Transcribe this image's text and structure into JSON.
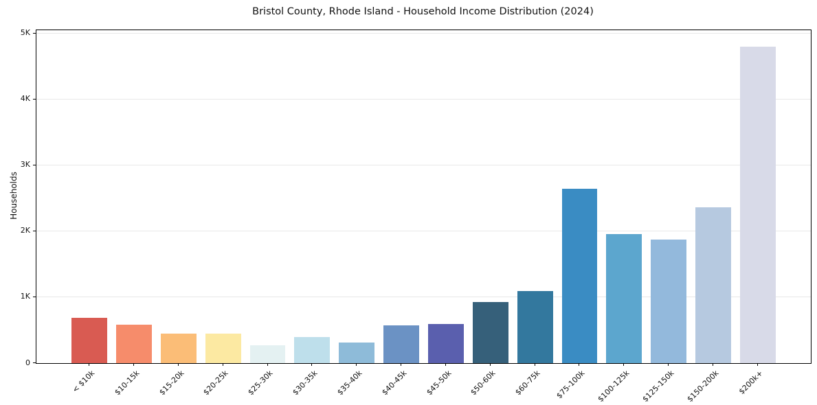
{
  "chart_data": {
    "type": "bar",
    "title": "Bristol County, Rhode Island - Household Income Distribution (2024)",
    "xlabel": "",
    "ylabel": "Households",
    "categories": [
      "< $10k",
      "$10-15k",
      "$15-20k",
      "$20-25k",
      "$25-30k",
      "$30-35k",
      "$35-40k",
      "$40-45k",
      "$45-50k",
      "$50-60k",
      "$60-75k",
      "$75-100k",
      "$100-125k",
      "$125-150k",
      "$150-200k",
      "$200k+"
    ],
    "values": [
      690,
      585,
      445,
      445,
      270,
      400,
      315,
      570,
      590,
      925,
      1090,
      2650,
      1960,
      1870,
      2365,
      4800
    ],
    "bar_colors": [
      "#d95b52",
      "#f68c6b",
      "#fbbd77",
      "#fce9a2",
      "#e4f1f2",
      "#bedfeb",
      "#8ebbd9",
      "#6b92c4",
      "#5a5fae",
      "#36607a",
      "#33789e",
      "#3a8cc3",
      "#5ca6ce",
      "#93b9dc",
      "#b6c9e0",
      "#d8dae8"
    ],
    "ytick_values": [
      0,
      1000,
      2000,
      3000,
      4000,
      5000
    ],
    "ytick_labels": [
      "0",
      "1K",
      "2K",
      "3K",
      "4K",
      "5K"
    ],
    "ylim": [
      0,
      5050
    ],
    "grid": "horizontal",
    "grid_color": "#e8e8e8",
    "axis_color": "#000000",
    "legend": "none"
  }
}
